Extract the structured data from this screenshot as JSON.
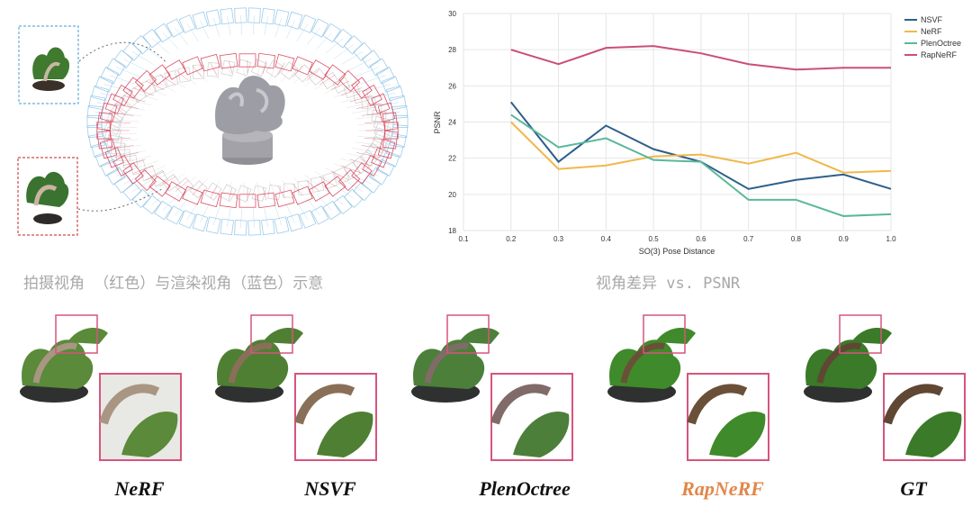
{
  "captions": {
    "left": "拍摄视角 （红色）与渲染视角（蓝色）示意",
    "right": "视角差异 vs. PSNR"
  },
  "methods": [
    "NeRF",
    "NSVF",
    "PlenOctree",
    "RapNeRF",
    "GT"
  ],
  "highlight_color": "#e0874a",
  "chart_data": {
    "type": "line",
    "xlabel": "SO(3) Pose Distance",
    "ylabel": "PSNR",
    "xlim": [
      0.1,
      1.0
    ],
    "ylim": [
      18,
      30
    ],
    "xticks": [
      "0.1",
      "0.2",
      "0.3",
      "0.4",
      "0.5",
      "0.6",
      "0.7",
      "0.8",
      "0.9",
      "1.0"
    ],
    "yticks": [
      "18",
      "20",
      "22",
      "24",
      "26",
      "28",
      "30"
    ],
    "x": [
      0.2,
      0.3,
      0.4,
      0.5,
      0.6,
      0.7,
      0.8,
      0.9,
      1.0
    ],
    "grid": true,
    "legend_position": "top-right",
    "series": [
      {
        "name": "NSVF",
        "color": "#2e5f8a",
        "values": [
          25.1,
          21.8,
          23.8,
          22.5,
          21.8,
          20.3,
          20.8,
          21.1,
          20.3
        ]
      },
      {
        "name": "NeRF",
        "color": "#f0b84a",
        "values": [
          24.0,
          21.4,
          21.6,
          22.1,
          22.2,
          21.7,
          22.3,
          21.2,
          21.3
        ]
      },
      {
        "name": "PlenOctree",
        "color": "#5bb89a",
        "values": [
          24.4,
          22.6,
          23.1,
          21.9,
          21.8,
          19.7,
          19.7,
          18.8,
          18.9
        ]
      },
      {
        "name": "RapNeRF",
        "color": "#c94f7a",
        "values": [
          28.0,
          27.2,
          28.1,
          28.2,
          27.8,
          27.2,
          26.9,
          27.0,
          27.0
        ]
      }
    ]
  }
}
